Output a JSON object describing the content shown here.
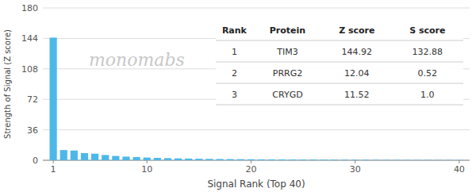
{
  "chart_data": {
    "type": "bar",
    "title": "",
    "xlabel": "Signal Rank (Top 40)",
    "ylabel": "Strength of Signal (Z score)",
    "x": [
      1,
      2,
      3,
      4,
      5,
      6,
      7,
      8,
      9,
      10,
      11,
      12,
      13,
      14,
      15,
      16,
      17,
      18,
      19,
      20,
      21,
      22,
      23,
      24,
      25,
      26,
      27,
      28,
      29,
      30,
      31,
      32,
      33,
      34,
      35,
      36,
      37,
      38,
      39,
      40
    ],
    "values": [
      144.92,
      12.04,
      11.52,
      8.5,
      7.8,
      6.2,
      5.1,
      4.3,
      3.8,
      3.2,
      2.8,
      2.5,
      2.2,
      2.0,
      1.8,
      1.6,
      1.5,
      1.4,
      1.3,
      1.2,
      1.1,
      1.05,
      1.0,
      0.95,
      0.9,
      0.85,
      0.8,
      0.75,
      0.7,
      0.65,
      0.6,
      0.55,
      0.5,
      0.48,
      0.45,
      0.42,
      0.4,
      0.38,
      0.35,
      0.32
    ],
    "color": "#4db8e8",
    "xlim": [
      0,
      41
    ],
    "xticks": [
      1,
      10,
      20,
      30,
      40
    ],
    "ylim": [
      0,
      180
    ],
    "yticks": [
      0,
      36,
      72,
      108,
      144,
      180
    ],
    "grid": true,
    "annotations": [
      "monomabs"
    ],
    "table": {
      "columns": [
        "Rank",
        "Protein",
        "Z score",
        "S score"
      ],
      "rows": [
        [
          "1",
          "TIM3",
          "144.92",
          "132.88"
        ],
        [
          "2",
          "PRRG2",
          "12.04",
          "0.52"
        ],
        [
          "3",
          "CRYGD",
          "11.52",
          "1.0"
        ]
      ]
    }
  }
}
